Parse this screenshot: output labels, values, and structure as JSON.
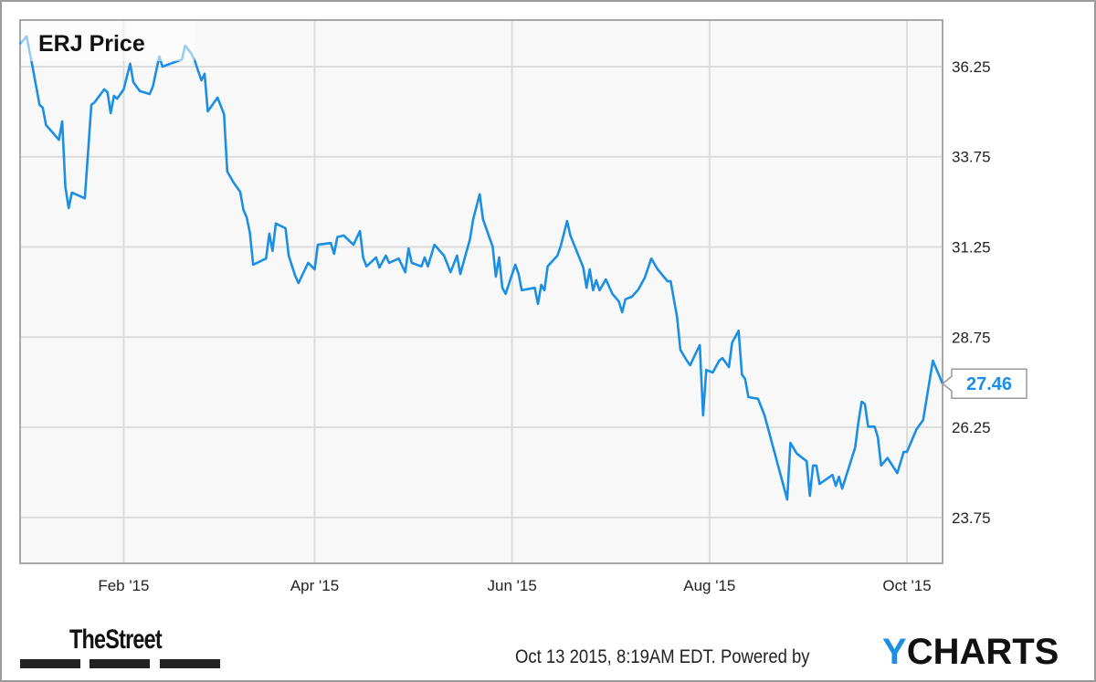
{
  "chart_data": {
    "type": "line",
    "title": "ERJ Price",
    "xlabel": "",
    "ylabel": "",
    "x_ticks": [
      {
        "date": "2015-02-01",
        "label": "Feb '15"
      },
      {
        "date": "2015-04-01",
        "label": "Apr '15"
      },
      {
        "date": "2015-06-01",
        "label": "Jun '15"
      },
      {
        "date": "2015-08-01",
        "label": "Aug '15"
      },
      {
        "date": "2015-10-01",
        "label": "Oct '15"
      }
    ],
    "y_ticks": [
      "36.25",
      "33.75",
      "31.25",
      "28.75",
      "26.25",
      "23.75"
    ],
    "xlim": [
      "2014-12-31",
      "2015-10-12"
    ],
    "ylim": [
      22.48,
      37.54
    ],
    "y_axis_side": "right",
    "grid": true,
    "line_color": "#1a8fe3",
    "last_value_label": "27.46",
    "series": [
      {
        "points": [
          [
            "2014-12-31",
            36.88
          ],
          [
            "2015-01-02",
            37.09
          ],
          [
            "2015-01-04",
            36.17
          ],
          [
            "2015-01-06",
            35.19
          ],
          [
            "2015-01-07",
            35.11
          ],
          [
            "2015-01-08",
            34.63
          ],
          [
            "2015-01-10",
            34.43
          ],
          [
            "2015-01-12",
            34.22
          ],
          [
            "2015-01-13",
            34.73
          ],
          [
            "2015-01-14",
            32.91
          ],
          [
            "2015-01-15",
            32.33
          ],
          [
            "2015-01-16",
            32.76
          ],
          [
            "2015-01-20",
            32.6
          ],
          [
            "2015-01-22",
            35.19
          ],
          [
            "2015-01-23",
            35.26
          ],
          [
            "2015-01-26",
            35.62
          ],
          [
            "2015-01-27",
            35.54
          ],
          [
            "2015-01-28",
            34.96
          ],
          [
            "2015-01-29",
            35.44
          ],
          [
            "2015-01-30",
            35.36
          ],
          [
            "2015-02-01",
            35.62
          ],
          [
            "2015-02-03",
            36.33
          ],
          [
            "2015-02-04",
            35.82
          ],
          [
            "2015-02-06",
            35.57
          ],
          [
            "2015-02-09",
            35.49
          ],
          [
            "2015-02-10",
            35.69
          ],
          [
            "2015-02-12",
            36.53
          ],
          [
            "2015-02-13",
            36.25
          ],
          [
            "2015-02-19",
            36.45
          ],
          [
            "2015-02-20",
            36.83
          ],
          [
            "2015-02-22",
            36.6
          ],
          [
            "2015-02-23",
            36.4
          ],
          [
            "2015-02-25",
            35.87
          ],
          [
            "2015-02-26",
            36.05
          ],
          [
            "2015-02-27",
            35.01
          ],
          [
            "2015-03-02",
            35.39
          ],
          [
            "2015-03-04",
            34.93
          ],
          [
            "2015-03-05",
            33.34
          ],
          [
            "2015-03-07",
            33.03
          ],
          [
            "2015-03-09",
            32.78
          ],
          [
            "2015-03-10",
            32.28
          ],
          [
            "2015-03-11",
            32.07
          ],
          [
            "2015-03-12",
            31.64
          ],
          [
            "2015-03-13",
            30.76
          ],
          [
            "2015-03-17",
            30.93
          ],
          [
            "2015-03-18",
            31.62
          ],
          [
            "2015-03-19",
            31.14
          ],
          [
            "2015-03-20",
            31.9
          ],
          [
            "2015-03-23",
            31.77
          ],
          [
            "2015-03-24",
            31.01
          ],
          [
            "2015-03-26",
            30.45
          ],
          [
            "2015-03-27",
            30.25
          ],
          [
            "2015-03-30",
            30.81
          ],
          [
            "2015-04-01",
            30.63
          ],
          [
            "2015-04-02",
            31.31
          ],
          [
            "2015-04-06",
            31.36
          ],
          [
            "2015-04-07",
            31.06
          ],
          [
            "2015-04-08",
            31.52
          ],
          [
            "2015-04-10",
            31.57
          ],
          [
            "2015-04-13",
            31.31
          ],
          [
            "2015-04-15",
            31.69
          ],
          [
            "2015-04-16",
            30.96
          ],
          [
            "2015-04-17",
            30.71
          ],
          [
            "2015-04-20",
            30.96
          ],
          [
            "2015-04-21",
            30.68
          ],
          [
            "2015-04-23",
            31.01
          ],
          [
            "2015-04-24",
            30.81
          ],
          [
            "2015-04-27",
            30.93
          ],
          [
            "2015-04-29",
            30.55
          ],
          [
            "2015-04-30",
            31.21
          ],
          [
            "2015-05-01",
            30.81
          ],
          [
            "2015-05-04",
            30.71
          ],
          [
            "2015-05-05",
            30.96
          ],
          [
            "2015-05-06",
            30.71
          ],
          [
            "2015-05-08",
            31.31
          ],
          [
            "2015-05-11",
            31.01
          ],
          [
            "2015-05-13",
            30.55
          ],
          [
            "2015-05-15",
            31.01
          ],
          [
            "2015-05-16",
            30.5
          ],
          [
            "2015-05-19",
            31.47
          ],
          [
            "2015-05-20",
            32.02
          ],
          [
            "2015-05-22",
            32.71
          ],
          [
            "2015-05-23",
            32.02
          ],
          [
            "2015-05-26",
            31.26
          ],
          [
            "2015-05-27",
            30.43
          ],
          [
            "2015-05-28",
            30.96
          ],
          [
            "2015-05-29",
            30.12
          ],
          [
            "2015-05-30",
            29.95
          ],
          [
            "2015-06-02",
            30.76
          ],
          [
            "2015-06-03",
            30.5
          ],
          [
            "2015-06-04",
            30.05
          ],
          [
            "2015-06-08",
            30.12
          ],
          [
            "2015-06-09",
            29.67
          ],
          [
            "2015-06-10",
            30.2
          ],
          [
            "2015-06-11",
            30.05
          ],
          [
            "2015-06-12",
            30.71
          ],
          [
            "2015-06-15",
            31.01
          ],
          [
            "2015-06-16",
            31.26
          ],
          [
            "2015-06-18",
            31.97
          ],
          [
            "2015-06-19",
            31.57
          ],
          [
            "2015-06-23",
            30.68
          ],
          [
            "2015-06-24",
            30.12
          ],
          [
            "2015-06-25",
            30.63
          ],
          [
            "2015-06-26",
            30.05
          ],
          [
            "2015-06-27",
            30.33
          ],
          [
            "2015-06-28",
            30.05
          ],
          [
            "2015-06-30",
            30.35
          ],
          [
            "2015-07-02",
            29.95
          ],
          [
            "2015-07-04",
            29.74
          ],
          [
            "2015-07-05",
            29.44
          ],
          [
            "2015-07-06",
            29.8
          ],
          [
            "2015-07-08",
            29.87
          ],
          [
            "2015-07-10",
            30.07
          ],
          [
            "2015-07-12",
            30.4
          ],
          [
            "2015-07-14",
            30.93
          ],
          [
            "2015-07-16",
            30.63
          ],
          [
            "2015-07-19",
            30.3
          ],
          [
            "2015-07-20",
            30.3
          ],
          [
            "2015-07-22",
            29.29
          ],
          [
            "2015-07-23",
            28.4
          ],
          [
            "2015-07-25",
            28.1
          ],
          [
            "2015-07-26",
            27.97
          ],
          [
            "2015-07-28",
            28.35
          ],
          [
            "2015-07-29",
            28.53
          ],
          [
            "2015-07-30",
            26.58
          ],
          [
            "2015-07-31",
            27.84
          ],
          [
            "2015-08-02",
            27.77
          ],
          [
            "2015-08-04",
            28.1
          ],
          [
            "2015-08-05",
            28.17
          ],
          [
            "2015-08-07",
            27.92
          ],
          [
            "2015-08-08",
            28.6
          ],
          [
            "2015-08-10",
            28.93
          ],
          [
            "2015-08-11",
            27.72
          ],
          [
            "2015-08-12",
            27.59
          ],
          [
            "2015-08-13",
            27.09
          ],
          [
            "2015-08-16",
            27.04
          ],
          [
            "2015-08-18",
            26.58
          ],
          [
            "2015-08-25",
            24.25
          ],
          [
            "2015-08-26",
            25.82
          ],
          [
            "2015-08-28",
            25.52
          ],
          [
            "2015-08-31",
            25.31
          ],
          [
            "2015-09-01",
            24.35
          ],
          [
            "2015-09-02",
            25.19
          ],
          [
            "2015-09-03",
            25.19
          ],
          [
            "2015-09-04",
            24.68
          ],
          [
            "2015-09-08",
            24.93
          ],
          [
            "2015-09-09",
            24.63
          ],
          [
            "2015-09-10",
            24.88
          ],
          [
            "2015-09-11",
            24.55
          ],
          [
            "2015-09-15",
            25.69
          ],
          [
            "2015-09-16",
            26.4
          ],
          [
            "2015-09-17",
            26.96
          ],
          [
            "2015-09-18",
            26.9
          ],
          [
            "2015-09-19",
            26.27
          ],
          [
            "2015-09-21",
            26.27
          ],
          [
            "2015-09-22",
            25.98
          ],
          [
            "2015-09-23",
            25.19
          ],
          [
            "2015-09-25",
            25.4
          ],
          [
            "2015-09-28",
            24.98
          ],
          [
            "2015-09-30",
            25.57
          ],
          [
            "2015-10-01",
            25.57
          ],
          [
            "2015-10-04",
            26.2
          ],
          [
            "2015-10-06",
            26.45
          ],
          [
            "2015-10-09",
            28.1
          ],
          [
            "2015-10-12",
            27.46
          ]
        ]
      }
    ]
  },
  "footer": {
    "timestamp": "Oct 13 2015, 8:19AM EDT. Powered by",
    "publisher_logo": "TheStreet",
    "brand_logo": {
      "accent": "Y",
      "rest": "CHARTS",
      "accent_color": "#1a8fe3"
    }
  }
}
